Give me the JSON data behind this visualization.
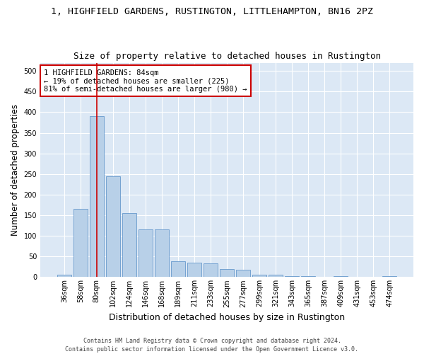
{
  "title": "1, HIGHFIELD GARDENS, RUSTINGTON, LITTLEHAMPTON, BN16 2PZ",
  "subtitle": "Size of property relative to detached houses in Rustington",
  "xlabel": "Distribution of detached houses by size in Rustington",
  "ylabel": "Number of detached properties",
  "categories": [
    "36sqm",
    "58sqm",
    "80sqm",
    "102sqm",
    "124sqm",
    "146sqm",
    "168sqm",
    "189sqm",
    "211sqm",
    "233sqm",
    "255sqm",
    "277sqm",
    "299sqm",
    "321sqm",
    "343sqm",
    "365sqm",
    "387sqm",
    "409sqm",
    "431sqm",
    "453sqm",
    "474sqm"
  ],
  "values": [
    5,
    165,
    390,
    245,
    155,
    115,
    115,
    38,
    35,
    33,
    20,
    18,
    5,
    5,
    3,
    3,
    0,
    3,
    0,
    0,
    3
  ],
  "bar_color": "#b8d0e8",
  "bar_edge_color": "#6699cc",
  "vline_index": 2,
  "vline_color": "#cc0000",
  "annotation_line1": "1 HIGHFIELD GARDENS: 84sqm",
  "annotation_line2": "← 19% of detached houses are smaller (225)",
  "annotation_line3": "81% of semi-detached houses are larger (980) →",
  "annotation_box_color": "#cc0000",
  "footer1": "Contains HM Land Registry data © Crown copyright and database right 2024.",
  "footer2": "Contains public sector information licensed under the Open Government Licence v3.0.",
  "ylim": [
    0,
    520
  ],
  "yticks": [
    0,
    50,
    100,
    150,
    200,
    250,
    300,
    350,
    400,
    450,
    500
  ],
  "background_color": "#dce8f5",
  "figure_background": "#ffffff",
  "grid_color": "#ffffff",
  "title_fontsize": 9.5,
  "subtitle_fontsize": 9,
  "ylabel_fontsize": 8.5,
  "xlabel_fontsize": 9,
  "tick_fontsize": 7,
  "annotation_fontsize": 7.5,
  "footer_fontsize": 6
}
